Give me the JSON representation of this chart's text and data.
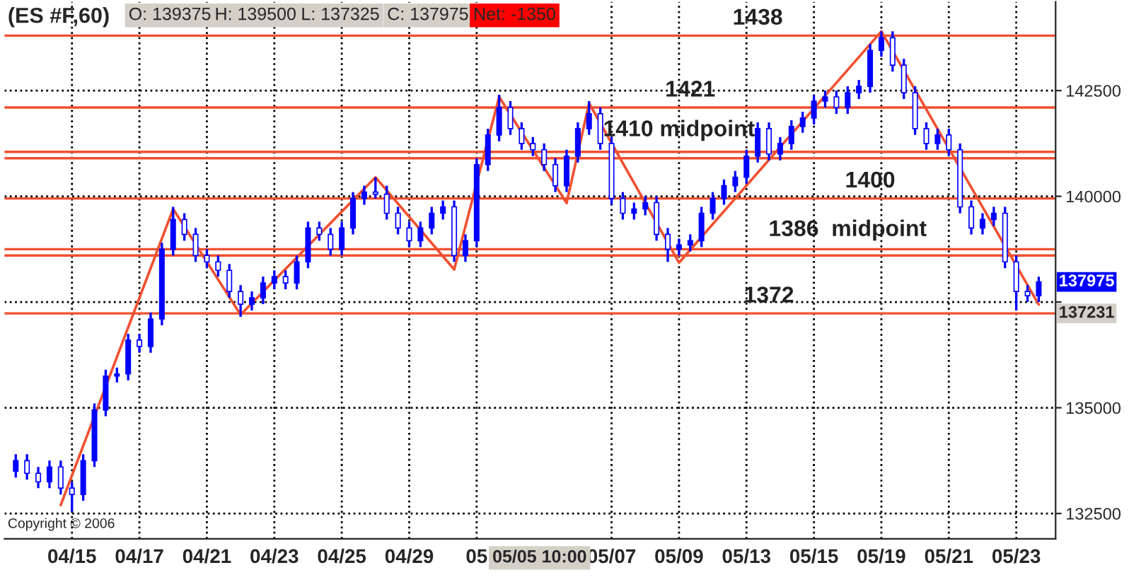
{
  "chart_data": {
    "type": "candlestick",
    "title": "(ES #F,60)",
    "color": "#0000ff",
    "categories": [
      null,
      null,
      null,
      null,
      null,
      "04/15",
      null,
      null,
      null,
      null,
      null,
      "04/17",
      null,
      null,
      null,
      null,
      null,
      "04/21",
      null,
      null,
      null,
      null,
      null,
      "04/23",
      null,
      null,
      null,
      null,
      null,
      "04/25",
      null,
      null,
      null,
      null,
      null,
      "04/29",
      null,
      null,
      null,
      null,
      null,
      "05",
      null,
      null,
      null,
      null,
      null,
      null,
      null,
      null,
      null,
      null,
      null,
      "05/07",
      null,
      null,
      null,
      null,
      null,
      "05/09",
      null,
      null,
      null,
      null,
      null,
      "05/13",
      null,
      null,
      null,
      null,
      null,
      "05/15",
      null,
      null,
      null,
      null,
      null,
      "05/19",
      null,
      null,
      null,
      null,
      null,
      "05/21",
      null,
      null,
      null,
      null,
      null,
      "05/23",
      null,
      null
    ],
    "ohlc": [
      [
        133500,
        133900,
        133350,
        133750
      ],
      [
        133750,
        133900,
        133300,
        133450
      ],
      [
        133450,
        133600,
        133100,
        133250
      ],
      [
        133250,
        133750,
        133100,
        133600
      ],
      [
        133600,
        133750,
        132950,
        133100
      ],
      [
        133100,
        133250,
        132550,
        132950
      ],
      [
        132950,
        133900,
        132800,
        133750
      ],
      [
        133750,
        135100,
        133600,
        134950
      ],
      [
        134950,
        135900,
        134800,
        135750
      ],
      [
        135750,
        135950,
        135600,
        135800
      ],
      [
        135800,
        136750,
        135650,
        136600
      ],
      [
        136600,
        136750,
        136300,
        136450
      ],
      [
        136450,
        137250,
        136300,
        137100
      ],
      [
        137100,
        138900,
        136950,
        138750
      ],
      [
        138750,
        139750,
        138600,
        139450
      ],
      [
        139450,
        139600,
        138950,
        139100
      ],
      [
        139100,
        139250,
        138450,
        138600
      ],
      [
        138600,
        138750,
        138300,
        138450
      ],
      [
        138450,
        138600,
        138100,
        138250
      ],
      [
        138250,
        138400,
        137600,
        137750
      ],
      [
        137750,
        137900,
        137150,
        137450
      ],
      [
        137450,
        137750,
        137300,
        137600
      ],
      [
        137600,
        138100,
        137450,
        137950
      ],
      [
        137950,
        138250,
        137800,
        138100
      ],
      [
        138100,
        138250,
        137800,
        137950
      ],
      [
        137950,
        138600,
        137800,
        138450
      ],
      [
        138450,
        139400,
        138300,
        139250
      ],
      [
        139250,
        139400,
        138950,
        139100
      ],
      [
        139100,
        139250,
        138600,
        138750
      ],
      [
        138750,
        139400,
        138600,
        139250
      ],
      [
        139250,
        140100,
        139100,
        139950
      ],
      [
        139950,
        140250,
        139800,
        140100
      ],
      [
        140100,
        140450,
        139950,
        140050
      ],
      [
        140050,
        140250,
        139450,
        139600
      ],
      [
        139600,
        139750,
        139100,
        139250
      ],
      [
        139250,
        139400,
        138800,
        138950
      ],
      [
        138950,
        139400,
        138800,
        139250
      ],
      [
        139250,
        139750,
        139100,
        139600
      ],
      [
        139600,
        139900,
        139450,
        139750
      ],
      [
        139750,
        139900,
        138450,
        138600
      ],
      [
        138600,
        139100,
        138450,
        138950
      ],
      [
        138950,
        140900,
        138800,
        140750
      ],
      [
        140750,
        141600,
        140600,
        141450
      ],
      [
        141450,
        142400,
        141300,
        142100
      ],
      [
        142100,
        142250,
        141450,
        141600
      ],
      [
        141600,
        141750,
        141100,
        141250
      ],
      [
        141250,
        141400,
        140950,
        141100
      ],
      [
        141100,
        141250,
        140600,
        140750
      ],
      [
        140750,
        140900,
        140100,
        140250
      ],
      [
        140250,
        141100,
        140100,
        140950
      ],
      [
        140950,
        141750,
        140800,
        141600
      ],
      [
        141600,
        142250,
        141450,
        141950
      ],
      [
        141950,
        142100,
        141100,
        141250
      ],
      [
        141250,
        141400,
        139800,
        139950
      ],
      [
        139950,
        140100,
        139450,
        139600
      ],
      [
        139600,
        139850,
        139450,
        139700
      ],
      [
        139700,
        140000,
        139550,
        139850
      ],
      [
        139850,
        140000,
        138950,
        139100
      ],
      [
        139100,
        139250,
        138450,
        138750
      ],
      [
        138750,
        139000,
        138600,
        138850
      ],
      [
        138850,
        139100,
        138700,
        138950
      ],
      [
        138950,
        139750,
        138800,
        139600
      ],
      [
        139600,
        140100,
        139450,
        139950
      ],
      [
        139950,
        140400,
        139800,
        140250
      ],
      [
        140250,
        140600,
        140100,
        140450
      ],
      [
        140450,
        141100,
        140300,
        140950
      ],
      [
        140950,
        141750,
        140800,
        141600
      ],
      [
        141600,
        141750,
        140850,
        141000
      ],
      [
        141000,
        141400,
        140850,
        141250
      ],
      [
        141250,
        141800,
        141100,
        141650
      ],
      [
        141650,
        142000,
        141500,
        141850
      ],
      [
        141850,
        142400,
        141700,
        142250
      ],
      [
        142250,
        142500,
        142100,
        142350
      ],
      [
        142350,
        142500,
        141950,
        142100
      ],
      [
        142100,
        142600,
        141950,
        142450
      ],
      [
        142450,
        142750,
        142300,
        142600
      ],
      [
        142600,
        143600,
        142450,
        143450
      ],
      [
        143450,
        143900,
        143300,
        143750
      ],
      [
        143750,
        143900,
        142950,
        143100
      ],
      [
        143100,
        143250,
        142300,
        142450
      ],
      [
        142450,
        142600,
        141450,
        141600
      ],
      [
        141600,
        141750,
        141100,
        141250
      ],
      [
        141250,
        141600,
        141100,
        141450
      ],
      [
        141450,
        141600,
        140950,
        141100
      ],
      [
        141100,
        141250,
        139600,
        139750
      ],
      [
        139750,
        139900,
        139100,
        139250
      ],
      [
        139250,
        139600,
        139100,
        139450
      ],
      [
        139450,
        139750,
        139300,
        139600
      ],
      [
        139600,
        139750,
        138300,
        138450
      ],
      [
        138450,
        138600,
        137300,
        137750
      ],
      [
        137750,
        137900,
        137500,
        137650
      ],
      [
        137650,
        138100,
        137500,
        137975
      ]
    ],
    "series": [
      {
        "type": "line",
        "color": "#f05030",
        "values": [
          null,
          null,
          null,
          null,
          132700,
          null,
          null,
          null,
          null,
          null,
          null,
          null,
          null,
          null,
          139700,
          null,
          null,
          null,
          null,
          null,
          137200,
          null,
          null,
          null,
          null,
          null,
          null,
          null,
          null,
          null,
          null,
          null,
          140450,
          null,
          null,
          null,
          null,
          null,
          null,
          138270,
          null,
          null,
          null,
          142350,
          null,
          null,
          null,
          null,
          null,
          139840,
          null,
          142200,
          null,
          null,
          null,
          null,
          null,
          null,
          null,
          138430,
          null,
          null,
          null,
          null,
          null,
          null,
          null,
          null,
          null,
          null,
          null,
          null,
          null,
          null,
          null,
          null,
          null,
          143900,
          null,
          null,
          null,
          null,
          null,
          null,
          null,
          null,
          null,
          null,
          null,
          null,
          null,
          137440
        ]
      }
    ],
    "ylim": [
      131900,
      144600
    ],
    "yticks": [
      132500,
      135000,
      {
        "value": 137500,
        "label": null
      },
      140000,
      142500
    ],
    "grid": true,
    "line_style": "solid",
    "ref_lines": [
      {
        "axis": "y",
        "value": 143800,
        "color": "#f05030"
      },
      {
        "axis": "y",
        "value": 142100,
        "color": "#f05030"
      },
      {
        "axis": "y",
        "value": 141050,
        "color": "#f05030"
      },
      {
        "axis": "y",
        "value": 140900,
        "color": "#f05030"
      },
      {
        "axis": "y",
        "value": 139950,
        "color": "#f05030"
      },
      {
        "axis": "y",
        "value": 138750,
        "color": "#f05030"
      },
      {
        "axis": "y",
        "value": 138600,
        "color": "#f05030"
      },
      {
        "axis": "y",
        "value": 137231,
        "label": "137231",
        "color": "#f05030"
      }
    ],
    "annotations": [
      "O: 139375",
      "H: 139500",
      "L: 137325",
      "C: 137975",
      "Net: -1350",
      "05/05 10:00",
      "Copyright © 2006",
      "137975",
      "1438",
      "1421",
      "1410 midpoint",
      "1400",
      "1386  midpoint",
      "1372"
    ]
  }
}
